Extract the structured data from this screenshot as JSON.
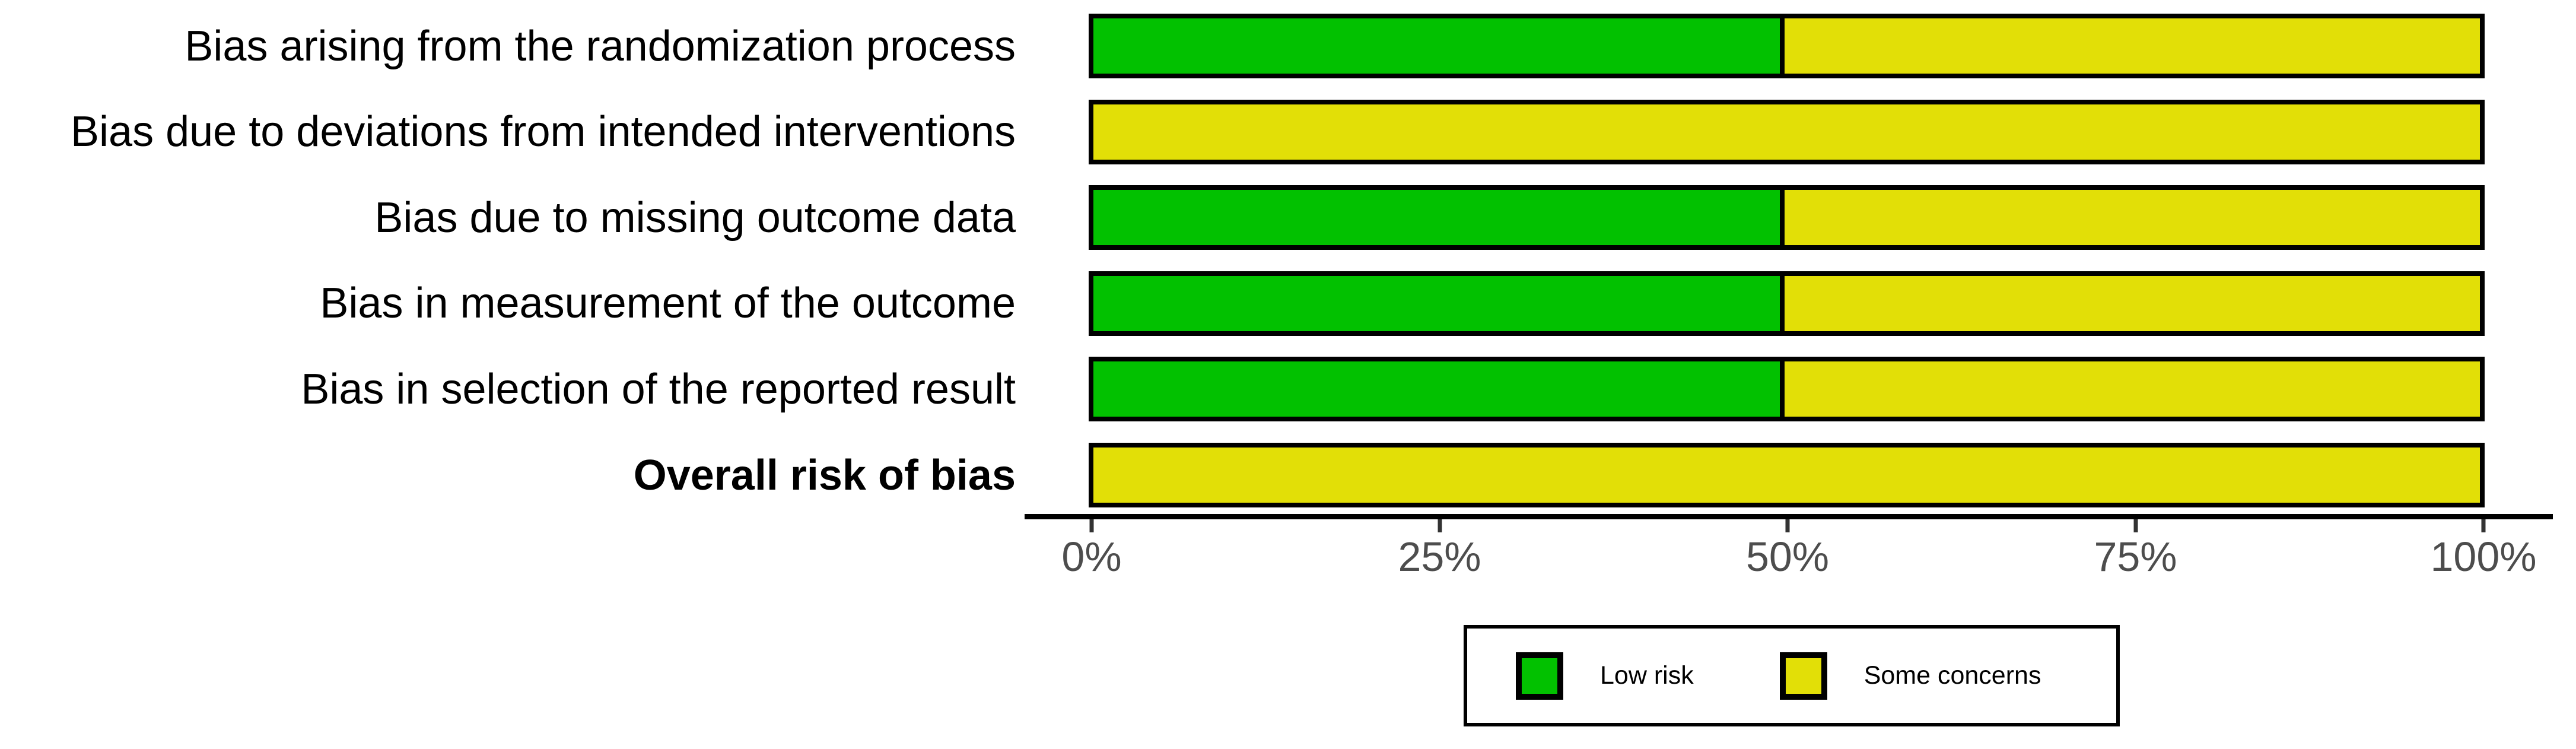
{
  "colors": {
    "low_risk": "#02C100",
    "some_concerns": "#E2DF07",
    "bar_border": "#000000",
    "axis_line": "#000000",
    "tick_mark": "#333333",
    "tick_text": "#4d4d4d",
    "label_text": "#000000",
    "background": "#ffffff"
  },
  "chart_data": {
    "type": "bar",
    "orientation": "horizontal",
    "stacked": true,
    "title": "",
    "xlabel": "",
    "ylabel": "",
    "xlim": [
      0,
      100
    ],
    "x_tick_labels": [
      "0%",
      "25%",
      "50%",
      "75%",
      "100%"
    ],
    "x_tick_values": [
      0,
      25,
      50,
      75,
      100
    ],
    "grid": false,
    "legend_position": "bottom-center",
    "categories": [
      "Bias arising from the randomization process",
      "Bias due to deviations from intended interventions",
      "Bias due to missing outcome data",
      "Bias in measurement of the outcome",
      "Bias in selection of the reported result",
      "Overall risk of bias"
    ],
    "bold_category_index": 5,
    "series": [
      {
        "name": "Low risk",
        "color": "#02C100",
        "values": [
          50,
          0,
          50,
          50,
          50,
          0
        ]
      },
      {
        "name": "Some concerns",
        "color": "#E2DF07",
        "values": [
          50,
          100,
          50,
          50,
          50,
          100
        ]
      }
    ]
  },
  "legend": {
    "items": [
      {
        "label": "Low risk",
        "color": "#02C100"
      },
      {
        "label": "Some concerns",
        "color": "#E2DF07"
      }
    ]
  }
}
